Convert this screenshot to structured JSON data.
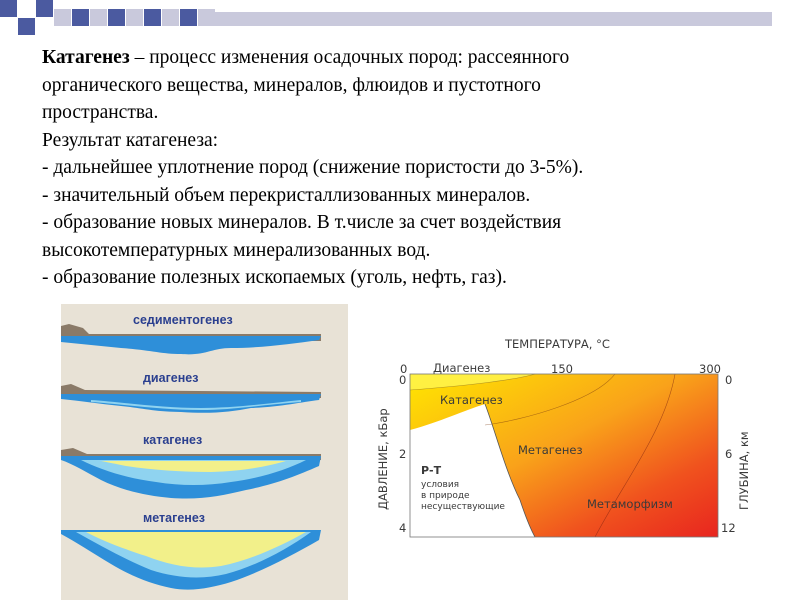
{
  "slide": {
    "lines": [
      {
        "bold": "Катагенез",
        "rest": " – процесс изменения осадочных пород: рассеянного"
      },
      {
        "bold": "",
        "rest": "органического вещества, минералов, флюидов и пустотного"
      },
      {
        "bold": "",
        "rest": "пространства."
      },
      {
        "bold": "",
        "rest": "Результат катагенеза:"
      },
      {
        "bold": "",
        "rest": "- дальнейшее уплотнение пород (снижение пористости до 3-5%)."
      },
      {
        "bold": "",
        "rest": "- значительный объем перекристаллизованных минералов."
      },
      {
        "bold": "",
        "rest": "- образование новых минералов. В т.числе за счет воздействия"
      },
      {
        "bold": "",
        "rest": "высокотемпературных минерализованных вод."
      },
      {
        "bold": "",
        "rest": "- образование полезных ископаемых (уголь, нефть, газ)."
      }
    ]
  },
  "sedimentation": {
    "stages": [
      "седиментогенез",
      "диагенез",
      "катагенез",
      "метагенез"
    ]
  },
  "pt_diagram": {
    "x_axis_title": "ТЕМПЕРАТУРА, °C",
    "left_axis_title": "ДАВЛЕНИЕ, кБар",
    "right_axis_title": "ГЛУБИНА, км",
    "top_ticks": [
      "0",
      "150",
      "300"
    ],
    "left_ticks": [
      "0",
      "2",
      "4"
    ],
    "right_ticks": [
      "0",
      "6",
      "12"
    ],
    "zones": [
      "Диагенез",
      "Катагенез",
      "Метагенез",
      "Метаморфизм"
    ],
    "pt_note_title": "Р-Т",
    "pt_note_lines": [
      "условия",
      "в природе",
      "несуществующие"
    ],
    "colors": {
      "yellow": "#ffe600",
      "orange": "#f58220",
      "red": "#e8251f",
      "water": "#2e8fd9",
      "light_blue": "#8fd3f0",
      "pale_yellow": "#f2f08a",
      "panel_bg": "#e8e2d6"
    }
  }
}
